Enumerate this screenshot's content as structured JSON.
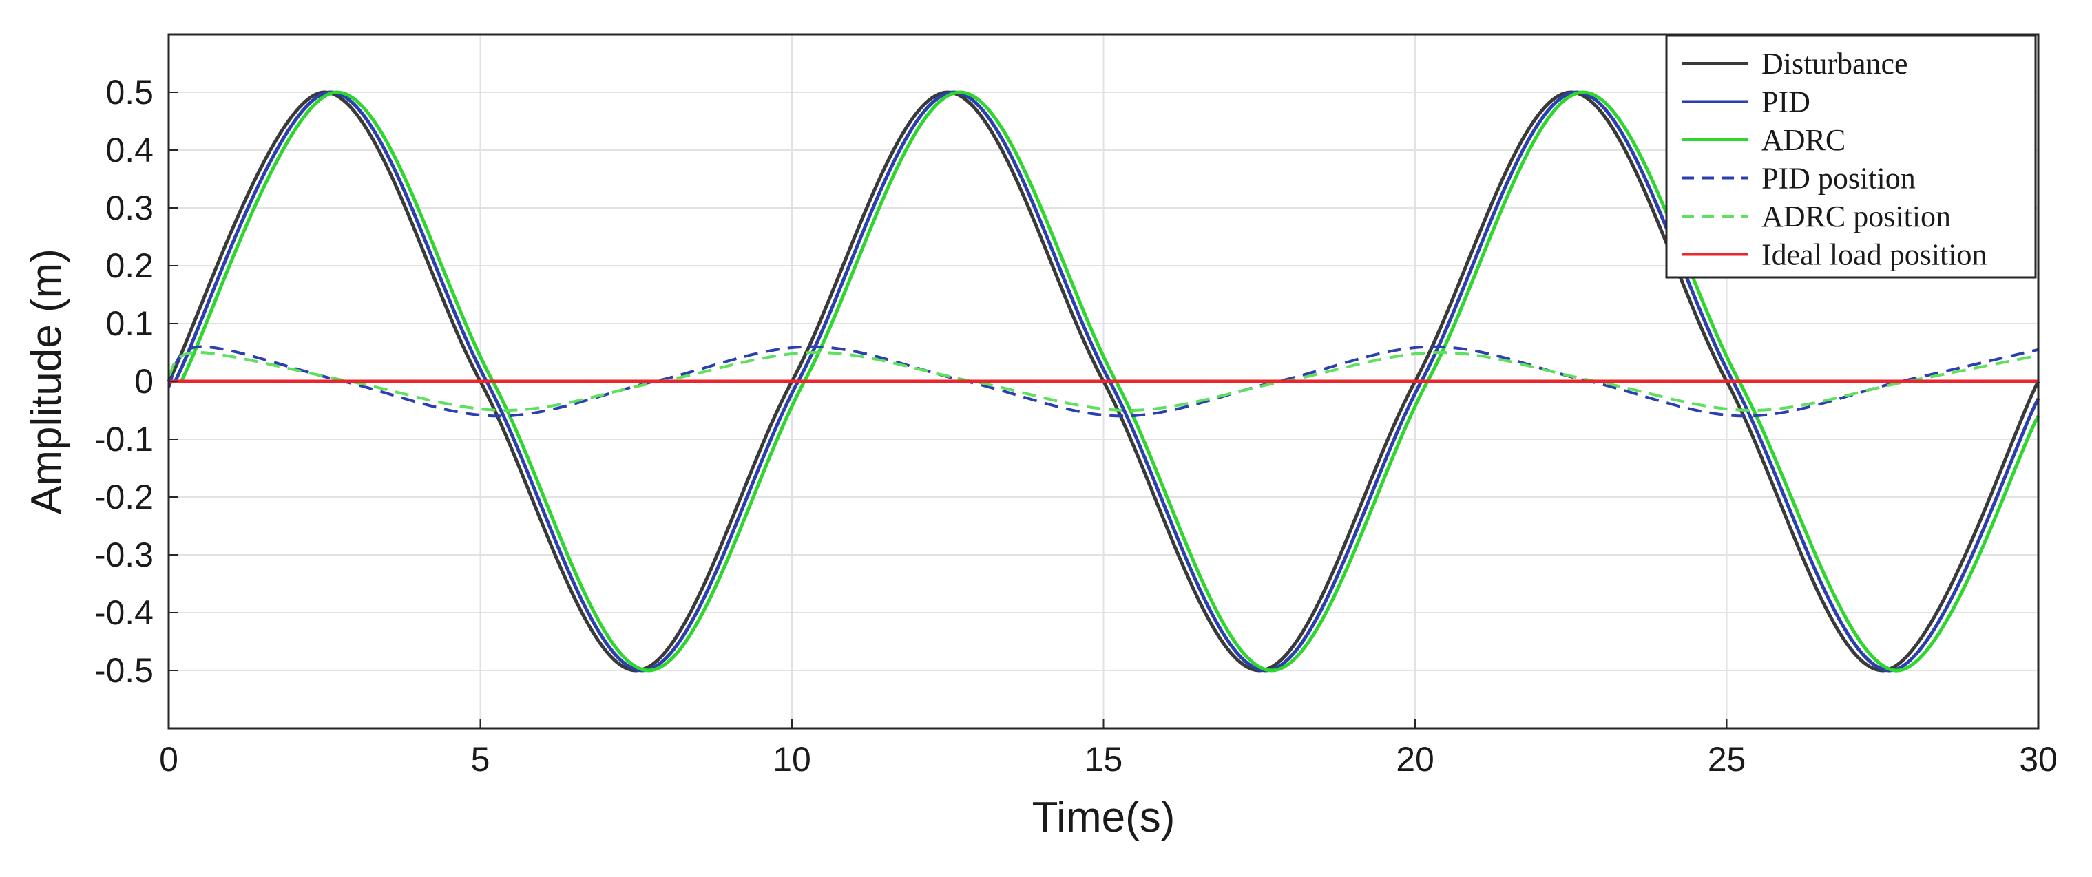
{
  "chart_data": {
    "type": "line",
    "title": "",
    "xlabel": "Time(s)",
    "ylabel": "Amplitude (m)",
    "xlim": [
      0,
      30
    ],
    "ylim": [
      -0.6,
      0.6
    ],
    "x_ticks": [
      "0",
      "5",
      "10",
      "15",
      "20",
      "25",
      "30"
    ],
    "y_ticks": [
      "0.5",
      "0.4",
      "0.3",
      "0.2",
      "0.1",
      "0",
      "-0.1",
      "-0.2",
      "-0.3",
      "-0.4",
      "-0.5"
    ],
    "grid": true,
    "legend_position": "top-right",
    "series": [
      {
        "name": "Disturbance",
        "color": "#3a3a3a",
        "dash": "solid",
        "x": [
          0,
          2.5,
          5,
          7.5,
          10,
          12.5,
          15,
          17.5,
          20,
          22.5,
          25,
          27.5,
          30
        ],
        "y": [
          0,
          0.5,
          0,
          -0.5,
          0,
          0.5,
          0,
          -0.5,
          0,
          0.5,
          0,
          -0.5,
          0
        ]
      },
      {
        "name": "PID",
        "color": "#2b3fb0",
        "dash": "solid",
        "x": [
          0.1,
          2.6,
          5.1,
          7.6,
          10.1,
          12.6,
          15.1,
          17.6,
          20.1,
          22.6,
          25.1,
          27.6,
          30
        ],
        "y": [
          0,
          0.5,
          0,
          -0.5,
          0,
          0.5,
          0,
          -0.5,
          0,
          0.5,
          0,
          -0.5,
          -0.03
        ]
      },
      {
        "name": "ADRC",
        "color": "#2ed62e",
        "dash": "solid",
        "x": [
          0.2,
          2.7,
          5.2,
          7.7,
          10.2,
          12.7,
          15.2,
          17.7,
          20.2,
          22.7,
          25.2,
          27.7,
          30
        ],
        "y": [
          0,
          0.5,
          0,
          -0.5,
          0,
          0.5,
          0,
          -0.5,
          0,
          0.5,
          0,
          -0.5,
          -0.06
        ]
      },
      {
        "name": "PID position",
        "color": "#2b3fb0",
        "dash": "dashed",
        "x": [
          0,
          0.5,
          2.8,
          5.3,
          7.8,
          10.3,
          12.8,
          15.3,
          17.8,
          20.3,
          22.8,
          25.3,
          27.8,
          30
        ],
        "y": [
          -0.01,
          0.06,
          0,
          -0.06,
          0,
          0.06,
          0,
          -0.06,
          0,
          0.06,
          0,
          -0.06,
          0,
          0.055
        ]
      },
      {
        "name": "ADRC position",
        "color": "#5ee05e",
        "dash": "dashed",
        "x": [
          0,
          0.5,
          2.9,
          5.4,
          7.9,
          10.4,
          12.9,
          15.4,
          17.9,
          20.4,
          22.9,
          25.4,
          27.9,
          30
        ],
        "y": [
          0.01,
          0.05,
          0,
          -0.05,
          0,
          0.05,
          0,
          -0.05,
          0,
          0.05,
          0,
          -0.05,
          0,
          0.045
        ]
      },
      {
        "name": "Ideal load position",
        "color": "#e8262b",
        "dash": "solid",
        "x": [
          0,
          30
        ],
        "y": [
          0,
          0
        ]
      }
    ]
  }
}
